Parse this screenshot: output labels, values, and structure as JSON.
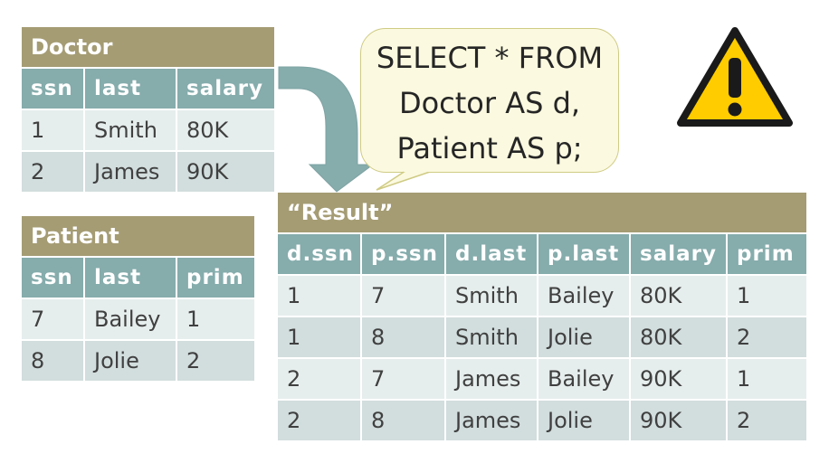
{
  "doctor": {
    "title": "Doctor",
    "columns": [
      "ssn",
      "last",
      "salary"
    ],
    "rows": [
      [
        "1",
        "Smith",
        "80K"
      ],
      [
        "2",
        "James",
        "90K"
      ]
    ]
  },
  "patient": {
    "title": "Patient",
    "columns": [
      "ssn",
      "last",
      "prim"
    ],
    "rows": [
      [
        "7",
        "Bailey",
        "1"
      ],
      [
        "8",
        "Jolie",
        "2"
      ]
    ]
  },
  "query": {
    "lines": [
      "SELECT * FROM",
      "Doctor AS d,",
      "Patient AS p;"
    ]
  },
  "result": {
    "title": "“Result”",
    "columns": [
      "d.ssn",
      "p.ssn",
      "d.last",
      "p.last",
      "salary",
      "prim"
    ],
    "rows": [
      [
        "1",
        "7",
        "Smith",
        "Bailey",
        "80K",
        "1"
      ],
      [
        "1",
        "8",
        "Smith",
        "Jolie",
        "80K",
        "2"
      ],
      [
        "2",
        "7",
        "James",
        "Bailey",
        "90K",
        "1"
      ],
      [
        "2",
        "8",
        "James",
        "Jolie",
        "90K",
        "2"
      ]
    ]
  },
  "colors": {
    "title_bar": "#a59c74",
    "header": "#86acac",
    "row_light": "#e6eded",
    "row_dark": "#d2dddd",
    "arrow": "#86acac",
    "bubble_fill": "#fbf9df",
    "warning_fill": "#ffcc00"
  },
  "icons": [
    "curved-arrow-down-icon",
    "warning-icon"
  ]
}
